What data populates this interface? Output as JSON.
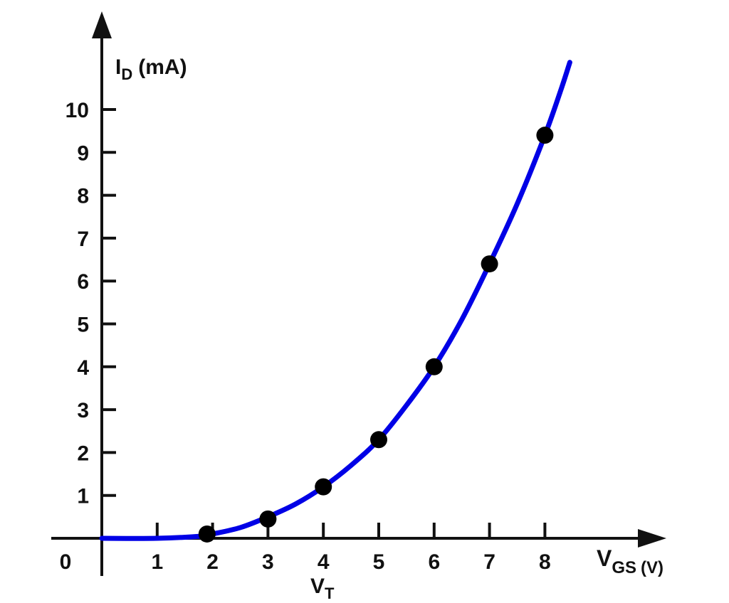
{
  "chart_data": {
    "type": "line",
    "title": "",
    "y_axis": {
      "label_main": "I",
      "label_sub": "D",
      "label_unit": "(mA)",
      "range": [
        0,
        10
      ],
      "ticks": [
        1,
        2,
        3,
        4,
        5,
        6,
        7,
        8,
        9,
        10
      ]
    },
    "x_axis": {
      "label_main": "V",
      "label_sub": "GS",
      "label_unit": "(V)",
      "range": [
        0,
        8.5
      ],
      "ticks": [
        1,
        2,
        3,
        4,
        5,
        6,
        7,
        8
      ],
      "origin_label": "0",
      "threshold_label_main": "V",
      "threshold_label_sub": "T"
    },
    "series": [
      {
        "color": "#0000e6",
        "curve": [
          [
            0,
            0
          ],
          [
            1,
            0
          ],
          [
            1.8,
            0.05
          ],
          [
            2,
            0.1
          ],
          [
            2.5,
            0.25
          ],
          [
            3,
            0.5
          ],
          [
            3.5,
            0.8
          ],
          [
            4,
            1.2
          ],
          [
            4.5,
            1.7
          ],
          [
            5,
            2.3
          ],
          [
            5.5,
            3.1
          ],
          [
            6,
            4.0
          ],
          [
            6.5,
            5.1
          ],
          [
            7,
            6.4
          ],
          [
            7.5,
            7.8
          ],
          [
            8,
            9.4
          ],
          [
            8.3,
            10.5
          ],
          [
            8.45,
            11.1
          ]
        ],
        "points": [
          [
            1.9,
            0.1
          ],
          [
            3,
            0.45
          ],
          [
            4,
            1.2
          ],
          [
            5,
            2.3
          ],
          [
            6,
            4.0
          ],
          [
            7,
            6.4
          ],
          [
            8,
            9.4
          ]
        ]
      }
    ],
    "grid": false,
    "legend": "none"
  }
}
